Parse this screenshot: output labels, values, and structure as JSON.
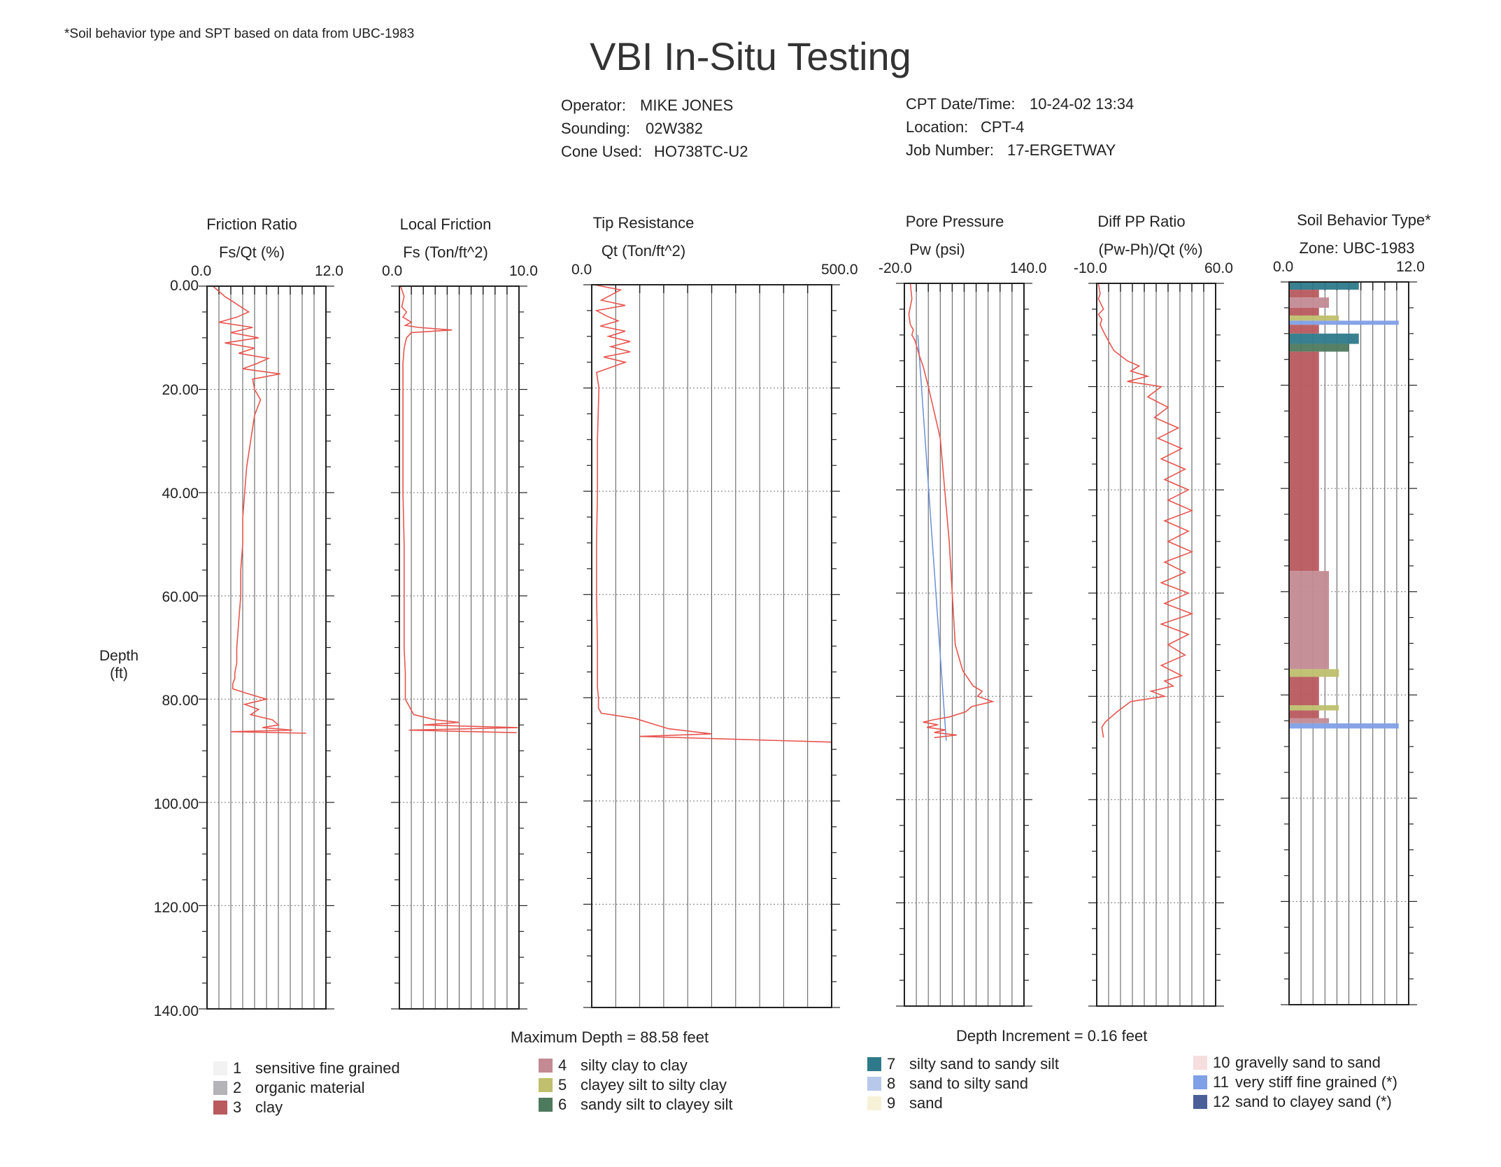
{
  "note": "*Soil behavior type and SPT based on data from UBC-1983",
  "title": "VBI In-Situ Testing",
  "header": {
    "operator_label": "Operator:",
    "operator": "MIKE JONES",
    "sounding_label": "Sounding:",
    "sounding": "02W382",
    "cone_label": "Cone Used:",
    "cone": "HO738TC-U2",
    "datetime_label": "CPT Date/Time:",
    "datetime": "10-24-02 13:34",
    "location_label": "Location:",
    "location": "CPT-4",
    "job_label": "Job Number:",
    "job": "17-ERGETWAY"
  },
  "depth_axis": {
    "label_line1": "Depth",
    "label_line2": "(ft)",
    "ticks": [
      "0.00",
      "20.00",
      "40.00",
      "60.00",
      "80.00",
      "100.00",
      "120.00",
      "140.00"
    ]
  },
  "footer": {
    "max_depth": "Maximum Depth = 88.58 feet",
    "increment": "Depth Increment = 0.16 feet"
  },
  "legend": [
    {
      "num": "1",
      "label": "sensitive fine grained",
      "color": "#f2f2f2"
    },
    {
      "num": "2",
      "label": "organic material",
      "color": "#b3b3b8"
    },
    {
      "num": "3",
      "label": "clay",
      "color": "#b85a5e"
    },
    {
      "num": "4",
      "label": "silty clay to clay",
      "color": "#c38a93"
    },
    {
      "num": "5",
      "label": "clayey silt to silty clay",
      "color": "#bfbf6e"
    },
    {
      "num": "6",
      "label": "sandy silt to clayey silt",
      "color": "#4e7a5e"
    },
    {
      "num": "7",
      "label": "silty sand to sandy silt",
      "color": "#2e7a8a"
    },
    {
      "num": "8",
      "label": "sand to silty sand",
      "color": "#b7c8ea"
    },
    {
      "num": "9",
      "label": "sand",
      "color": "#f7f2d7"
    },
    {
      "num": "10",
      "label": "gravelly sand to sand",
      "color": "#f6dede"
    },
    {
      "num": "11",
      "label": "very stiff fine grained (*)",
      "color": "#7f9fe6"
    },
    {
      "num": "12",
      "label": "sand to clayey sand (*)",
      "color": "#4a5f98"
    }
  ],
  "chart_data": [
    {
      "type": "line",
      "title": "Friction Ratio",
      "xlabel": "Fs/Qt (%)",
      "ylabel": "Depth (ft)",
      "xlim": [
        0.0,
        12.0
      ],
      "ylim": [
        0,
        140
      ],
      "xtick_left": "0.0",
      "xtick_right": "12.0",
      "color": "#e8554f",
      "series": [
        {
          "x": [
            0.6,
            1.8,
            2.6,
            4.2,
            3.0,
            1.2,
            4.6,
            2.4,
            5.2,
            1.8,
            4.8,
            3.2,
            6.2,
            5.0,
            3.6,
            7.4,
            4.6,
            4.8,
            5.4,
            4.8,
            4.4,
            4.0,
            3.8,
            3.6,
            3.6,
            3.4,
            3.4,
            3.2,
            3.0,
            3.0,
            2.8,
            2.8,
            2.6,
            2.6,
            4.2,
            6.0,
            3.8,
            5.2,
            4.4,
            6.6,
            7.2,
            5.6,
            8.6,
            2.4,
            10.0
          ],
          "y": [
            0,
            2,
            3,
            5,
            6,
            7,
            8,
            9,
            10,
            11,
            12,
            13,
            14,
            15,
            16,
            17,
            18,
            20,
            22,
            25,
            30,
            35,
            40,
            45,
            50,
            55,
            60,
            65,
            70,
            73,
            75,
            76,
            77,
            78,
            79,
            80,
            81,
            82,
            83,
            84,
            85,
            85.5,
            86,
            86.3,
            86.6
          ]
        }
      ]
    },
    {
      "type": "line",
      "title": "Local Friction",
      "xlabel": "Fs (Ton/ft^2)",
      "ylabel": "Depth (ft)",
      "xlim": [
        0.0,
        10.0
      ],
      "ylim": [
        0,
        140
      ],
      "xtick_left": "0.0",
      "xtick_right": "10.0",
      "color": "#e8554f",
      "series": [
        {
          "x": [
            0.1,
            0.4,
            0.2,
            0.6,
            0.3,
            1.0,
            0.5,
            1.6,
            4.4,
            1.0,
            0.6,
            0.4,
            0.3,
            0.3,
            0.3,
            0.3,
            0.4,
            0.4,
            0.4,
            0.5,
            0.5,
            1.2,
            3.0,
            5.0,
            2.0,
            9.9,
            0.8,
            9.8
          ],
          "y": [
            0,
            2,
            4,
            5,
            6,
            7,
            7.6,
            8,
            8.5,
            9,
            10,
            12,
            15,
            20,
            30,
            40,
            50,
            60,
            70,
            75,
            80,
            83,
            84,
            84.5,
            85,
            85.5,
            86,
            86.5
          ]
        }
      ]
    },
    {
      "type": "line",
      "title": "Tip Resistance",
      "xlabel": "Qt (Ton/ft^2)",
      "ylabel": "Depth (ft)",
      "xlim": [
        0.0,
        500.0
      ],
      "ylim": [
        0,
        140
      ],
      "xtick_left": "0.0",
      "xtick_right": "500.0",
      "color": "#e8554f",
      "series": [
        {
          "x": [
            5,
            60,
            20,
            70,
            10,
            30,
            55,
            18,
            70,
            35,
            80,
            40,
            80,
            25,
            70,
            10,
            15,
            12,
            12,
            10,
            10,
            12,
            12,
            14,
            14,
            20,
            90,
            160,
            250,
            100,
            500
          ],
          "y": [
            0,
            1,
            3,
            4,
            5,
            6,
            7,
            8,
            9,
            10,
            11,
            12,
            13,
            14,
            15,
            17,
            20,
            30,
            40,
            50,
            60,
            70,
            78,
            80,
            82,
            83,
            84,
            86,
            87,
            87.5,
            88.6
          ]
        }
      ]
    },
    {
      "type": "line",
      "title": "Pore Pressure",
      "xlabel": "Pw (psi)",
      "ylabel": "Depth (ft)",
      "xlim": [
        -20.0,
        140.0
      ],
      "ylim": [
        0,
        140
      ],
      "xtick_left": "-20.0",
      "xtick_right": "140.0",
      "color": "#e8554f",
      "hydrostatic_color": "#6b8fd6",
      "hydrostatic": {
        "x": [
          -2,
          36
        ],
        "y": [
          10,
          88.6
        ]
      },
      "series": [
        {
          "x": [
            -12,
            -10,
            -14,
            -12,
            -8,
            -10,
            -6,
            -4,
            0,
            5,
            12,
            20,
            28,
            34,
            40,
            44,
            48,
            58,
            72,
            84,
            78,
            98,
            70,
            62,
            40,
            20,
            5,
            25,
            10,
            35,
            20,
            50,
            20
          ],
          "y": [
            0,
            3,
            6,
            8,
            9,
            10,
            11,
            12,
            14,
            16,
            20,
            25,
            30,
            40,
            50,
            60,
            70,
            75,
            78,
            79,
            80,
            81,
            82,
            83,
            84,
            84.5,
            85,
            85.5,
            86,
            86.5,
            87,
            87.5,
            88
          ]
        }
      ]
    },
    {
      "type": "line",
      "title": "Diff PP Ratio",
      "xlabel": "(Pw-Ph)/Qt (%)",
      "ylabel": "Depth (ft)",
      "xlim": [
        -10.0,
        60.0
      ],
      "ylim": [
        0,
        140
      ],
      "xtick_left": "-10.0",
      "xtick_right": "60.0",
      "color": "#e8554f",
      "series": [
        {
          "x": [
            -9,
            -8,
            -9,
            -6,
            -9,
            -7,
            -8,
            -5,
            0,
            8,
            15,
            10,
            20,
            8,
            28,
            20,
            32,
            24,
            38,
            26,
            40,
            28,
            42,
            30,
            44,
            32,
            46,
            30,
            44,
            32,
            46,
            30,
            42,
            28,
            44,
            30,
            46,
            28,
            44,
            32,
            42,
            28,
            40,
            30,
            35,
            22,
            30,
            10,
            2,
            -5,
            -7,
            -6
          ],
          "y": [
            0,
            2,
            3,
            5,
            6,
            7,
            8,
            10,
            13,
            15,
            16,
            17,
            18,
            19,
            20,
            22,
            24,
            26,
            28,
            30,
            32,
            34,
            36,
            38,
            40,
            42,
            44,
            46,
            48,
            50,
            52,
            54,
            56,
            58,
            60,
            62,
            64,
            66,
            68,
            70,
            72,
            74,
            76,
            77,
            78,
            79,
            80,
            81,
            83,
            85,
            86,
            88
          ]
        }
      ]
    },
    {
      "type": "bar",
      "title": "Soil Behavior Type*",
      "xlabel": "Zone: UBC-1983",
      "ylabel": "Depth (ft)",
      "xlim": [
        0.0,
        12.0
      ],
      "ylim": [
        0,
        140
      ],
      "xtick_left": "0.0",
      "xtick_right": "12.0",
      "layers": [
        {
          "top": 0,
          "bottom": 1.5,
          "zone": 7
        },
        {
          "top": 1.5,
          "bottom": 3,
          "zone": 3
        },
        {
          "top": 3,
          "bottom": 5,
          "zone": 4
        },
        {
          "top": 5,
          "bottom": 6.5,
          "zone": 3
        },
        {
          "top": 6.5,
          "bottom": 7.5,
          "zone": 5
        },
        {
          "top": 7.5,
          "bottom": 8.3,
          "zone": 11
        },
        {
          "top": 8.3,
          "bottom": 10,
          "zone": 3
        },
        {
          "top": 10,
          "bottom": 12,
          "zone": 7
        },
        {
          "top": 12,
          "bottom": 13.5,
          "zone": 6
        },
        {
          "top": 13.5,
          "bottom": 56,
          "zone": 3
        },
        {
          "top": 56,
          "bottom": 75,
          "zone": 4
        },
        {
          "top": 75,
          "bottom": 76.5,
          "zone": 5
        },
        {
          "top": 76.5,
          "bottom": 82,
          "zone": 3
        },
        {
          "top": 82,
          "bottom": 83,
          "zone": 5
        },
        {
          "top": 83,
          "bottom": 84.5,
          "zone": 3
        },
        {
          "top": 84.5,
          "bottom": 85.5,
          "zone": 4
        },
        {
          "top": 85.5,
          "bottom": 86.5,
          "zone": 11
        }
      ]
    }
  ]
}
